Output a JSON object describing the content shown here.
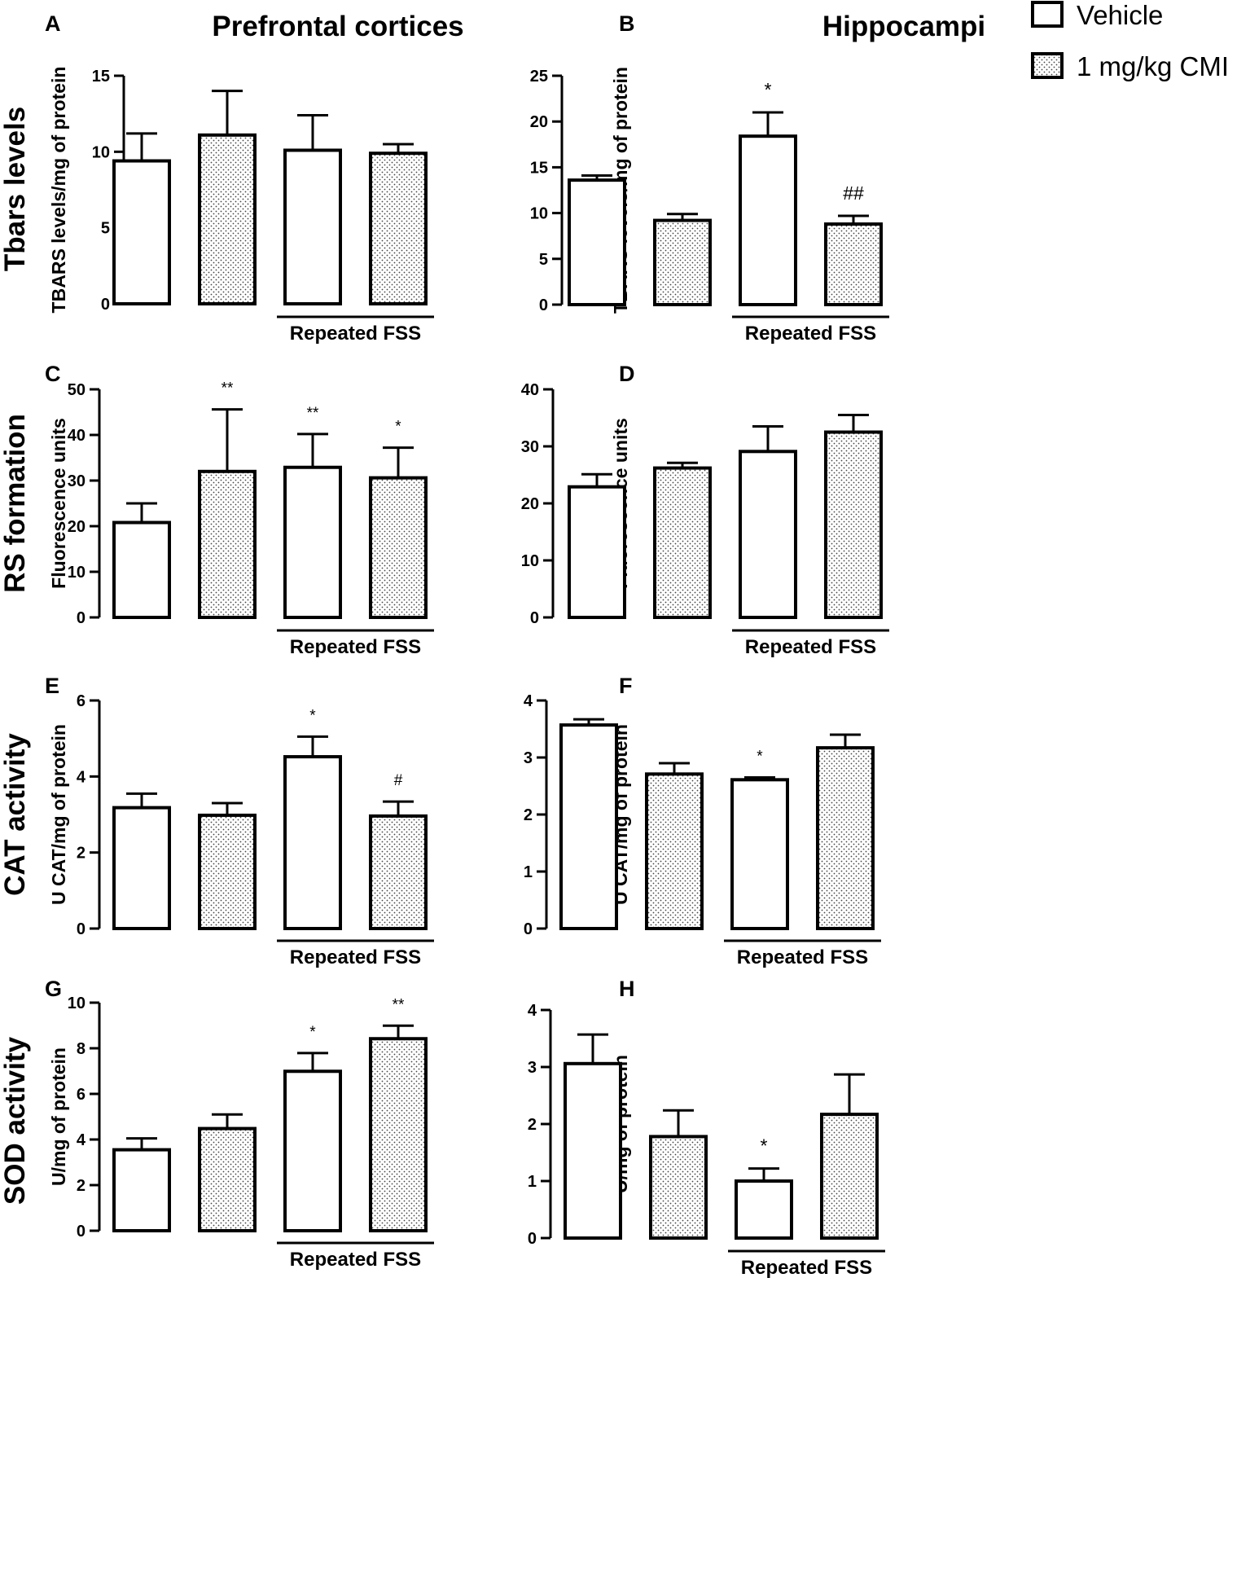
{
  "figure": {
    "column_titles": [
      "Prefrontal cortices",
      "Hippocampi"
    ],
    "row_titles": [
      "Tbars levels",
      "RS formation",
      "CAT activity",
      "SOD activity"
    ],
    "legend": [
      {
        "label": "Vehicle",
        "fill": "plain"
      },
      {
        "label": "1 mg/kg CMI",
        "fill": "dotted"
      }
    ],
    "group_label": "Repeated FSS",
    "colors": {
      "ink": "#000000",
      "bar_fill": "#ffffff",
      "dot": "#444444"
    }
  },
  "chart_data": [
    {
      "panel": "A",
      "type": "bar",
      "ylabel": "TBARS levels/mg of protein",
      "ylim": [
        0,
        15
      ],
      "yticks": [
        0,
        5,
        10,
        15
      ],
      "ytick_labels": [
        "0",
        "5",
        "10",
        "15"
      ],
      "fills": [
        "plain",
        "dotted",
        "plain",
        "dotted"
      ],
      "values": [
        9.4,
        11.1,
        10.1,
        9.9
      ],
      "errors": [
        1.8,
        2.9,
        2.3,
        0.6
      ],
      "annotations": [
        "",
        "",
        "",
        ""
      ]
    },
    {
      "panel": "B",
      "type": "bar",
      "ylabel": "TBARS levels/mg of protein",
      "ylim": [
        0,
        25
      ],
      "yticks": [
        0,
        5,
        10,
        15,
        20,
        25
      ],
      "ytick_labels": [
        "0",
        "5",
        "10",
        "15",
        "20",
        "25"
      ],
      "fills": [
        "plain",
        "dotted",
        "plain",
        "dotted"
      ],
      "values": [
        13.6,
        9.2,
        18.4,
        8.8
      ],
      "errors": [
        0.5,
        0.7,
        2.6,
        0.9
      ],
      "annotations": [
        "",
        "",
        "*",
        "##"
      ]
    },
    {
      "panel": "C",
      "type": "bar",
      "ylabel": "Fluorescence units",
      "ylim": [
        0,
        50
      ],
      "yticks": [
        0,
        10,
        20,
        30,
        40,
        50
      ],
      "ytick_labels": [
        "0",
        "10",
        "20",
        "30",
        "40",
        "50"
      ],
      "fills": [
        "plain",
        "dotted",
        "plain",
        "dotted"
      ],
      "values": [
        20.8,
        32.0,
        32.9,
        30.6
      ],
      "errors": [
        4.2,
        13.6,
        7.3,
        6.6
      ],
      "annotations": [
        "",
        "**",
        "**",
        "*"
      ]
    },
    {
      "panel": "D",
      "type": "bar",
      "ylabel": "Fluorescence units",
      "ylim": [
        0,
        40
      ],
      "yticks": [
        0,
        10,
        20,
        30,
        40
      ],
      "ytick_labels": [
        "0",
        "10",
        "20",
        "30",
        "40"
      ],
      "fills": [
        "plain",
        "dotted",
        "plain",
        "dotted"
      ],
      "values": [
        22.9,
        26.2,
        29.1,
        32.5
      ],
      "errors": [
        2.2,
        0.9,
        4.4,
        3.0
      ],
      "annotations": [
        "",
        "",
        "",
        ""
      ]
    },
    {
      "panel": "E",
      "type": "bar",
      "ylabel": "U CAT/mg of protein",
      "ylim": [
        0,
        6
      ],
      "yticks": [
        0,
        2,
        4,
        6
      ],
      "ytick_labels": [
        "0",
        "2",
        "4",
        "6"
      ],
      "fills": [
        "plain",
        "dotted",
        "plain",
        "dotted"
      ],
      "values": [
        3.18,
        2.98,
        4.52,
        2.96
      ],
      "errors": [
        0.37,
        0.32,
        0.53,
        0.38
      ],
      "annotations": [
        "",
        "",
        "*",
        "#"
      ]
    },
    {
      "panel": "F",
      "type": "bar",
      "ylabel": "U CAT/mg of protein",
      "ylim": [
        0,
        4
      ],
      "yticks": [
        0,
        1,
        2,
        3,
        4
      ],
      "ytick_labels": [
        "0",
        "1",
        "2",
        "3",
        "4"
      ],
      "fills": [
        "plain",
        "dotted",
        "plain",
        "dotted"
      ],
      "values": [
        3.57,
        2.71,
        2.61,
        3.17
      ],
      "errors": [
        0.1,
        0.19,
        0.04,
        0.23
      ],
      "annotations": [
        "",
        "",
        "*",
        ""
      ]
    },
    {
      "panel": "G",
      "type": "bar",
      "ylabel": "U/mg of protein",
      "ylim": [
        0,
        10
      ],
      "yticks": [
        0,
        2,
        4,
        6,
        8,
        10
      ],
      "ytick_labels": [
        "0",
        "2",
        "4",
        "6",
        "8",
        "10"
      ],
      "fills": [
        "plain",
        "dotted",
        "plain",
        "dotted"
      ],
      "values": [
        3.55,
        4.48,
        6.99,
        8.42
      ],
      "errors": [
        0.5,
        0.62,
        0.8,
        0.57
      ],
      "annotations": [
        "",
        "",
        "*",
        "**"
      ]
    },
    {
      "panel": "H",
      "type": "bar",
      "ylabel": "U/mg of protein",
      "ylim": [
        0,
        4
      ],
      "yticks": [
        0,
        1,
        2,
        3,
        4
      ],
      "ytick_labels": [
        "0",
        "1",
        "2",
        "3",
        "4"
      ],
      "fills": [
        "plain",
        "dotted",
        "plain",
        "dotted"
      ],
      "values": [
        3.06,
        1.78,
        1.0,
        2.17
      ],
      "errors": [
        0.51,
        0.46,
        0.22,
        0.7
      ],
      "annotations": [
        "",
        "",
        "*",
        ""
      ]
    }
  ]
}
